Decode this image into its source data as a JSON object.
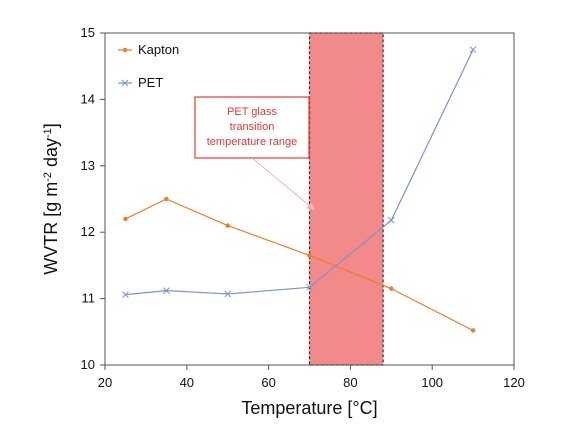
{
  "chart_data": {
    "type": "line",
    "x_axis": {
      "label": "Temperature  [°C]",
      "min": 20,
      "max": 120,
      "ticks": [
        20,
        40,
        60,
        80,
        100,
        120
      ]
    },
    "y_axis": {
      "label": "WVTR [g m",
      "label_sup1": "-2",
      "label_mid": " day",
      "label_sup2": "-1",
      "label_end": "]",
      "min": 10,
      "max": 15,
      "ticks": [
        10,
        11,
        12,
        13,
        14,
        15
      ]
    },
    "series": [
      {
        "name": "Kapton",
        "color": "#f07a2a",
        "marker": "dot",
        "x": [
          25,
          35,
          50,
          70,
          90,
          110
        ],
        "y": [
          12.2,
          12.5,
          12.1,
          11.65,
          11.15,
          10.52
        ]
      },
      {
        "name": "PET",
        "color": "#7b93c9",
        "marker": "x",
        "x": [
          25,
          35,
          50,
          70,
          90,
          110
        ],
        "y": [
          11.06,
          11.12,
          11.07,
          11.17,
          12.18,
          14.75
        ]
      }
    ],
    "highlight_range": {
      "x_start": 70,
      "x_end": 88,
      "color": "#f38a8a",
      "outline": "#333333"
    },
    "annotation": {
      "lines": [
        "PET glass",
        "transition",
        "temperature range"
      ],
      "color": "#e53935",
      "arrow_target_x": 71,
      "arrow_target_y": 12.35
    },
    "legend": {
      "placement": "top-left",
      "entries": [
        "Kapton",
        "PET"
      ]
    }
  }
}
